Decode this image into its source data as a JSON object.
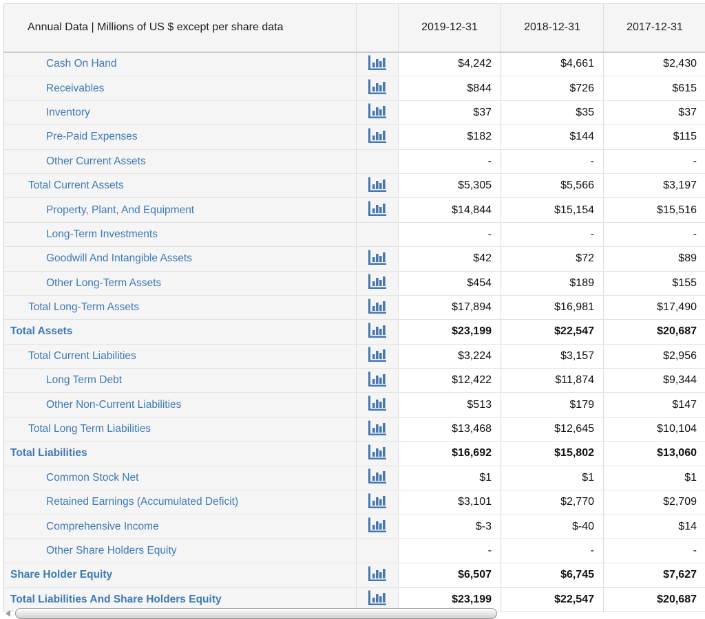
{
  "colors": {
    "link_blue": "#3d79b4",
    "icon_blue": "#4577b0",
    "header_bg": "#f5f5f6",
    "label_column_bg": "#f5f5f6",
    "border_gray": "#dcdcdc"
  },
  "icons": {
    "row_chart": "bar-chart-icon",
    "scroll_left": "scroll-left-arrow-icon"
  },
  "table": {
    "header": {
      "title": "Annual Data | Millions of US $ except per share data",
      "columns": [
        "2019-12-31",
        "2018-12-31",
        "2017-12-31"
      ]
    },
    "rows": [
      {
        "label": "Cash On Hand",
        "indent": 2,
        "bold": false,
        "icon": true,
        "values": [
          "$4,242",
          "$4,661",
          "$2,430"
        ]
      },
      {
        "label": "Receivables",
        "indent": 2,
        "bold": false,
        "icon": true,
        "values": [
          "$844",
          "$726",
          "$615"
        ]
      },
      {
        "label": "Inventory",
        "indent": 2,
        "bold": false,
        "icon": true,
        "values": [
          "$37",
          "$35",
          "$37"
        ]
      },
      {
        "label": "Pre-Paid Expenses",
        "indent": 2,
        "bold": false,
        "icon": true,
        "values": [
          "$182",
          "$144",
          "$115"
        ]
      },
      {
        "label": "Other Current Assets",
        "indent": 2,
        "bold": false,
        "icon": false,
        "values": [
          "-",
          "-",
          "-"
        ]
      },
      {
        "label": "Total Current Assets",
        "indent": 1,
        "bold": false,
        "icon": true,
        "values": [
          "$5,305",
          "$5,566",
          "$3,197"
        ]
      },
      {
        "label": "Property, Plant, And Equipment",
        "indent": 2,
        "bold": false,
        "icon": true,
        "values": [
          "$14,844",
          "$15,154",
          "$15,516"
        ]
      },
      {
        "label": "Long-Term Investments",
        "indent": 2,
        "bold": false,
        "icon": false,
        "values": [
          "-",
          "-",
          "-"
        ]
      },
      {
        "label": "Goodwill And Intangible Assets",
        "indent": 2,
        "bold": false,
        "icon": true,
        "values": [
          "$42",
          "$72",
          "$89"
        ]
      },
      {
        "label": "Other Long-Term Assets",
        "indent": 2,
        "bold": false,
        "icon": true,
        "values": [
          "$454",
          "$189",
          "$155"
        ]
      },
      {
        "label": "Total Long-Term Assets",
        "indent": 1,
        "bold": false,
        "icon": true,
        "values": [
          "$17,894",
          "$16,981",
          "$17,490"
        ]
      },
      {
        "label": "Total Assets",
        "indent": 0,
        "bold": true,
        "icon": true,
        "values": [
          "$23,199",
          "$22,547",
          "$20,687"
        ]
      },
      {
        "label": "Total Current Liabilities",
        "indent": 1,
        "bold": false,
        "icon": true,
        "values": [
          "$3,224",
          "$3,157",
          "$2,956"
        ]
      },
      {
        "label": "Long Term Debt",
        "indent": 2,
        "bold": false,
        "icon": true,
        "values": [
          "$12,422",
          "$11,874",
          "$9,344"
        ]
      },
      {
        "label": "Other Non-Current Liabilities",
        "indent": 2,
        "bold": false,
        "icon": true,
        "values": [
          "$513",
          "$179",
          "$147"
        ]
      },
      {
        "label": "Total Long Term Liabilities",
        "indent": 1,
        "bold": false,
        "icon": true,
        "values": [
          "$13,468",
          "$12,645",
          "$10,104"
        ]
      },
      {
        "label": "Total Liabilities",
        "indent": 0,
        "bold": true,
        "icon": true,
        "values": [
          "$16,692",
          "$15,802",
          "$13,060"
        ]
      },
      {
        "label": "Common Stock Net",
        "indent": 2,
        "bold": false,
        "icon": true,
        "values": [
          "$1",
          "$1",
          "$1"
        ]
      },
      {
        "label": "Retained Earnings (Accumulated Deficit)",
        "indent": 2,
        "bold": false,
        "icon": true,
        "values": [
          "$3,101",
          "$2,770",
          "$2,709"
        ]
      },
      {
        "label": "Comprehensive Income",
        "indent": 2,
        "bold": false,
        "icon": true,
        "values": [
          "$-3",
          "$-40",
          "$14"
        ]
      },
      {
        "label": "Other Share Holders Equity",
        "indent": 2,
        "bold": false,
        "icon": false,
        "values": [
          "-",
          "-",
          "-"
        ]
      },
      {
        "label": "Share Holder Equity",
        "indent": 0,
        "bold": true,
        "icon": true,
        "values": [
          "$6,507",
          "$6,745",
          "$7,627"
        ]
      },
      {
        "label": "Total Liabilities And Share Holders Equity",
        "indent": 0,
        "bold": true,
        "icon": true,
        "values": [
          "$23,199",
          "$22,547",
          "$20,687"
        ]
      }
    ]
  }
}
